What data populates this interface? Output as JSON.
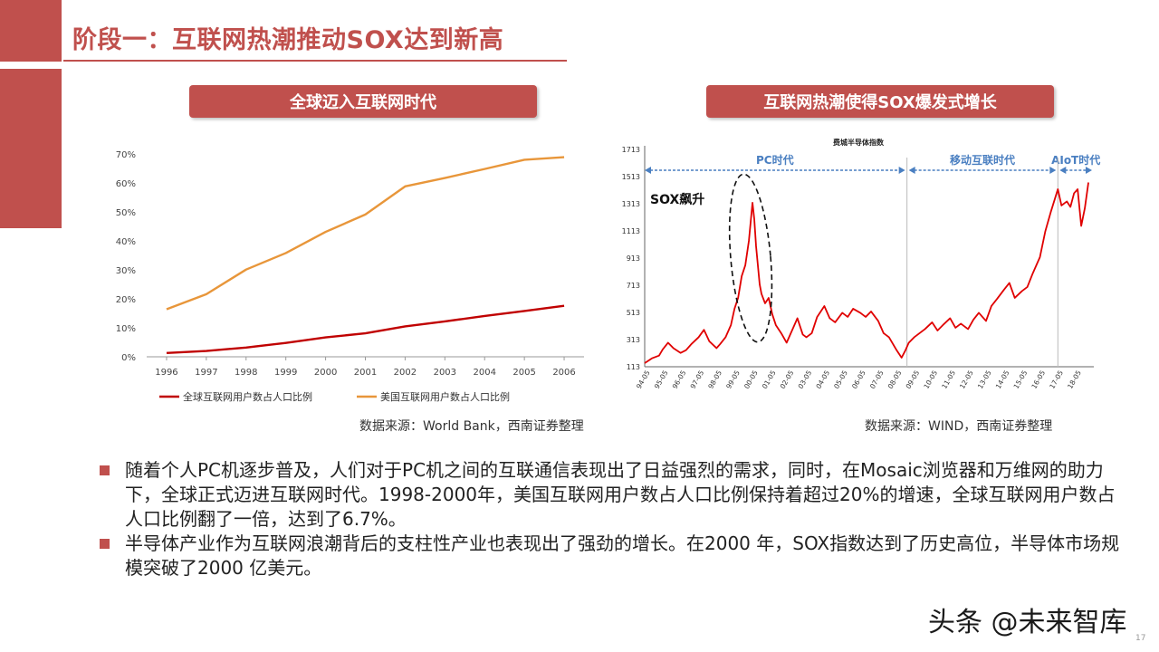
{
  "slide": {
    "title": "阶段一：互联网热潮推动SOX达到新高",
    "pill_left": "全球迈入互联网时代",
    "pill_right": "互联网热潮使得SOX爆发式增长",
    "source_left": "数据来源：World Bank，西南证券整理",
    "source_right": "数据来源：WIND，西南证券整理",
    "bullets": [
      "随着个人PC机逐步普及，人们对于PC机之间的互联通信表现出了日益强烈的需求，同时，在Mosaic浏览器和万维网的助力下，全球正式迈进互联网时代。1998-2000年，美国互联网用户数占人口比例保持着超过20%的增速，全球互联网用户数占人口比例翻了一倍，达到了6.7%。",
      "半导体产业作为互联网浪潮背后的支柱性产业也表现出了强劲的增长。在2000 年，SOX指数达到了历史高位，半导体市场规模突破了2000 亿美元。"
    ],
    "watermark": "头条 @未来智库",
    "page_number": "17"
  },
  "colors": {
    "accent": "#c0504d",
    "series_global": "#c00000",
    "series_us": "#e8963a",
    "sox_line": "#e00000",
    "era_blue": "#4a7fc1"
  },
  "chart_data": [
    {
      "type": "line",
      "categories": [
        "1996",
        "1997",
        "1998",
        "1999",
        "2000",
        "2001",
        "2002",
        "2003",
        "2004",
        "2005",
        "2006"
      ],
      "series": [
        {
          "name": "全球互联网用户数占人口比例",
          "values": [
            1.3,
            2.0,
            3.2,
            4.8,
            6.7,
            8.1,
            10.5,
            12.2,
            14.1,
            15.8,
            17.6
          ]
        },
        {
          "name": "美国互联网用户数占人口比例",
          "values": [
            16.4,
            21.6,
            30.1,
            35.8,
            43.1,
            49.1,
            58.8,
            61.7,
            64.8,
            68.0,
            68.9
          ]
        }
      ],
      "yticks": [
        "0%",
        "10%",
        "20%",
        "30%",
        "40%",
        "50%",
        "60%",
        "70%"
      ],
      "ylim": [
        0,
        70
      ],
      "legend": "bottom",
      "grid": false
    },
    {
      "type": "line",
      "title": "费城半导体指数",
      "yticks": [
        "113",
        "313",
        "513",
        "713",
        "913",
        "1113",
        "1313",
        "1513",
        "1713"
      ],
      "ylim": [
        113,
        1713
      ],
      "xticks": [
        "94-05",
        "95-05",
        "96-05",
        "97-05",
        "98-05",
        "99-05",
        "00-05",
        "01-05",
        "02-05",
        "03-05",
        "04-05",
        "05-05",
        "06-05",
        "07-05",
        "08-05",
        "09-05",
        "10-05",
        "11-05",
        "12-05",
        "13-05",
        "14-05",
        "15-05",
        "16-05",
        "17-05",
        "18-05"
      ],
      "eras": [
        {
          "label": "PC时代",
          "from": 0,
          "to": 14.6
        },
        {
          "label": "移动互联时代",
          "from": 14.6,
          "to": 23.0
        },
        {
          "label": "AIoT时代",
          "from": 23.0,
          "to": 25.0
        }
      ],
      "annotation": "SOX飙升",
      "series": [
        {
          "x": [
            0,
            0.4,
            0.8,
            1.0,
            1.3,
            1.6,
            2.0,
            2.3,
            2.6,
            3.0,
            3.3,
            3.6,
            4.0,
            4.2,
            4.5,
            4.8,
            5.0,
            5.2,
            5.4,
            5.6,
            5.8,
            5.9,
            6.0,
            6.1,
            6.2,
            6.3,
            6.4,
            6.5,
            6.7,
            6.9,
            7.1,
            7.3,
            7.6,
            7.9,
            8.2,
            8.5,
            8.8,
            9.0,
            9.3,
            9.6,
            10.0,
            10.3,
            10.6,
            11.0,
            11.3,
            11.6,
            12.0,
            12.3,
            12.6,
            13.0,
            13.3,
            13.6,
            14.0,
            14.3,
            14.5,
            14.7,
            15.0,
            15.3,
            15.6,
            16.0,
            16.3,
            16.6,
            17.0,
            17.3,
            17.6,
            18.0,
            18.3,
            18.6,
            19.0,
            19.3,
            19.6,
            20.0,
            20.3,
            20.6,
            21.0,
            21.3,
            21.6,
            22.0,
            22.3,
            22.6,
            23.0,
            23.2,
            23.5,
            23.7,
            23.9,
            24.1,
            24.3,
            24.5,
            24.7
          ],
          "y": [
            140,
            175,
            195,
            240,
            290,
            250,
            215,
            235,
            280,
            330,
            385,
            300,
            250,
            280,
            330,
            420,
            540,
            620,
            780,
            860,
            1040,
            1180,
            1320,
            1200,
            1000,
            860,
            720,
            650,
            580,
            620,
            500,
            420,
            360,
            290,
            380,
            470,
            350,
            330,
            360,
            480,
            560,
            470,
            440,
            510,
            480,
            540,
            510,
            480,
            520,
            450,
            360,
            330,
            240,
            180,
            230,
            290,
            330,
            360,
            390,
            440,
            380,
            420,
            470,
            400,
            430,
            390,
            460,
            510,
            450,
            560,
            610,
            680,
            730,
            620,
            670,
            700,
            800,
            920,
            1110,
            1250,
            1420,
            1300,
            1330,
            1290,
            1390,
            1420,
            1150,
            1280,
            1470
          ]
        }
      ]
    }
  ]
}
